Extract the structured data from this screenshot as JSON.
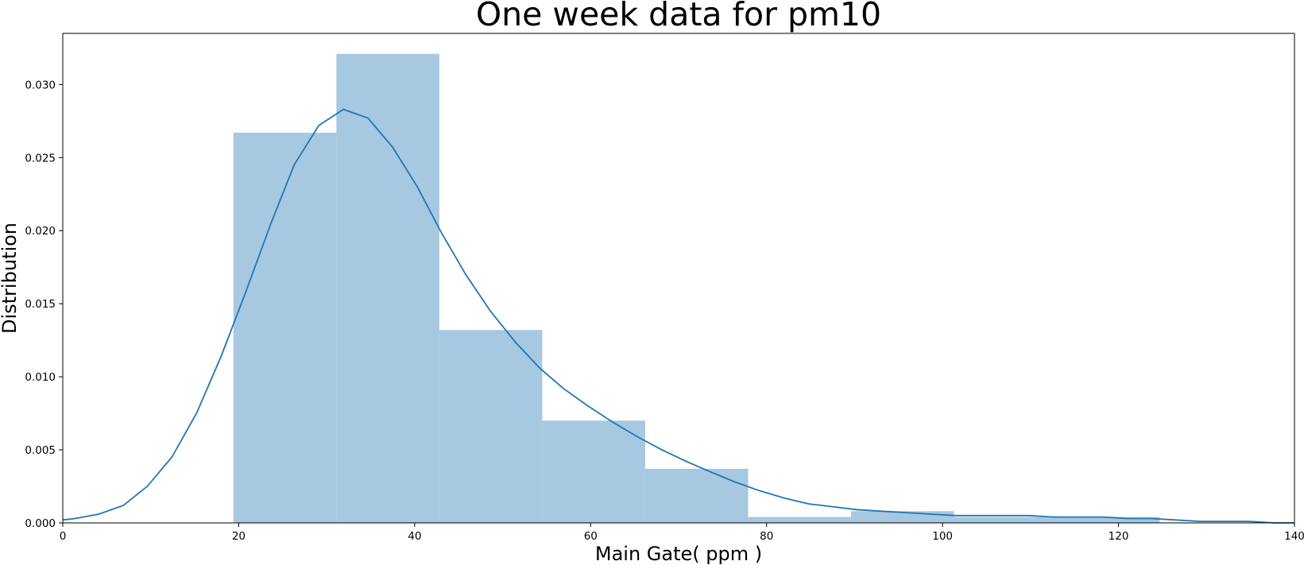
{
  "chart_data": {
    "type": "bar",
    "title": "One week data for pm10",
    "xlabel": "Main Gate( ppm )",
    "ylabel": "Distribution",
    "xlim": [
      0,
      140
    ],
    "ylim": [
      0,
      0.0335
    ],
    "x_ticks": [
      "0",
      "20",
      "40",
      "60",
      "80",
      "100",
      "120",
      "140"
    ],
    "y_ticks": [
      "0.000",
      "0.005",
      "0.010",
      "0.015",
      "0.020",
      "0.025",
      "0.030"
    ],
    "grid": false,
    "histogram": {
      "color": "#a6c8e1",
      "bins": [
        {
          "x0": 19.4,
          "x1": 31.1,
          "density": 0.0267
        },
        {
          "x0": 31.1,
          "x1": 42.8,
          "density": 0.0321
        },
        {
          "x0": 42.8,
          "x1": 54.5,
          "density": 0.0132
        },
        {
          "x0": 54.5,
          "x1": 66.2,
          "density": 0.007
        },
        {
          "x0": 66.2,
          "x1": 77.9,
          "density": 0.0037
        },
        {
          "x0": 77.9,
          "x1": 89.6,
          "density": 0.0004
        },
        {
          "x0": 89.6,
          "x1": 101.3,
          "density": 0.0008
        },
        {
          "x0": 101.3,
          "x1": 113.0,
          "density": 0.0004
        },
        {
          "x0": 113.0,
          "x1": 124.7,
          "density": 0.0004
        }
      ]
    },
    "kde": {
      "color": "#1f77b4",
      "x": [
        0,
        1.4,
        4.1,
        6.9,
        9.6,
        12.4,
        15.2,
        18.0,
        20.8,
        23.6,
        26.3,
        29.1,
        31.9,
        34.7,
        37.5,
        40.3,
        43.0,
        45.8,
        48.6,
        51.4,
        54.2,
        56.9,
        59.7,
        62.5,
        65.3,
        68.1,
        70.9,
        73.6,
        76.4,
        79.2,
        82.0,
        84.8,
        87.6,
        90.3,
        93.1,
        95.9,
        98.7,
        101.5,
        104.3,
        107.0,
        109.8,
        112.6,
        115.4,
        118.2,
        121.0,
        123.7,
        126.5,
        129.3,
        132.1,
        134.9,
        137.7,
        140
      ],
      "y": [
        0.0002,
        0.0003,
        0.0006,
        0.0012,
        0.0025,
        0.0045,
        0.0075,
        0.0114,
        0.0158,
        0.0204,
        0.0245,
        0.0272,
        0.0283,
        0.0277,
        0.0257,
        0.023,
        0.0199,
        0.017,
        0.0145,
        0.0124,
        0.0106,
        0.0092,
        0.008,
        0.0069,
        0.0059,
        0.005,
        0.0042,
        0.0035,
        0.0028,
        0.0022,
        0.0017,
        0.0013,
        0.0011,
        0.0009,
        0.0008,
        0.0007,
        0.0006,
        0.0005,
        0.0005,
        0.0005,
        0.0005,
        0.0004,
        0.0004,
        0.0004,
        0.0003,
        0.0003,
        0.0002,
        0.0001,
        0.0001,
        0.0001,
        0.0,
        0.0
      ]
    }
  }
}
